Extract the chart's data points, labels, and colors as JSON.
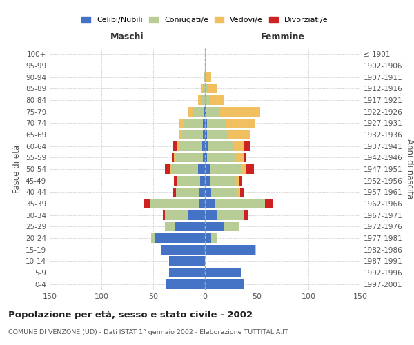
{
  "age_groups": [
    "0-4",
    "5-9",
    "10-14",
    "15-19",
    "20-24",
    "25-29",
    "30-34",
    "35-39",
    "40-44",
    "45-49",
    "50-54",
    "55-59",
    "60-64",
    "65-69",
    "70-74",
    "75-79",
    "80-84",
    "85-89",
    "90-94",
    "95-99",
    "100+"
  ],
  "birth_years": [
    "1997-2001",
    "1992-1996",
    "1987-1991",
    "1982-1986",
    "1977-1981",
    "1972-1976",
    "1967-1971",
    "1962-1966",
    "1957-1961",
    "1952-1956",
    "1947-1951",
    "1942-1946",
    "1937-1941",
    "1932-1936",
    "1927-1931",
    "1922-1926",
    "1917-1921",
    "1912-1916",
    "1907-1911",
    "1902-1906",
    "≤ 1901"
  ],
  "males": {
    "celibi": [
      38,
      35,
      35,
      42,
      48,
      29,
      17,
      6,
      6,
      5,
      7,
      2,
      3,
      2,
      2,
      1,
      0,
      0,
      0,
      0,
      0
    ],
    "coniugati": [
      0,
      0,
      0,
      0,
      3,
      10,
      22,
      47,
      22,
      22,
      26,
      26,
      22,
      20,
      18,
      11,
      4,
      2,
      1,
      0,
      0
    ],
    "vedovi": [
      0,
      0,
      0,
      0,
      1,
      0,
      0,
      0,
      0,
      0,
      1,
      2,
      2,
      3,
      5,
      4,
      3,
      2,
      0,
      0,
      0
    ],
    "divorziati": [
      0,
      0,
      0,
      0,
      0,
      0,
      2,
      6,
      3,
      3,
      5,
      2,
      4,
      0,
      0,
      0,
      0,
      0,
      0,
      0,
      0
    ]
  },
  "females": {
    "nubili": [
      38,
      35,
      0,
      48,
      6,
      18,
      12,
      10,
      6,
      5,
      5,
      2,
      3,
      2,
      2,
      1,
      0,
      0,
      0,
      0,
      0
    ],
    "coniugate": [
      0,
      0,
      0,
      1,
      5,
      15,
      26,
      48,
      25,
      25,
      30,
      28,
      24,
      20,
      18,
      12,
      5,
      3,
      1,
      0,
      0
    ],
    "vedove": [
      0,
      0,
      0,
      0,
      0,
      0,
      0,
      0,
      3,
      3,
      5,
      7,
      11,
      22,
      28,
      40,
      13,
      9,
      5,
      1,
      0
    ],
    "divorziate": [
      0,
      0,
      0,
      0,
      0,
      0,
      3,
      8,
      3,
      3,
      7,
      3,
      5,
      0,
      0,
      0,
      0,
      0,
      0,
      0,
      0
    ]
  },
  "colors": {
    "celibi": "#4472c4",
    "coniugati": "#b8cc96",
    "vedovi": "#f0c060",
    "divorziati": "#cc2222"
  },
  "title": "Popolazione per età, sesso e stato civile - 2002",
  "subtitle": "COMUNE DI VENZONE (UD) - Dati ISTAT 1° gennaio 2002 - Elaborazione TUTTITALIA.IT",
  "xlabel_left": "Maschi",
  "xlabel_right": "Femmine",
  "ylabel_left": "Fasce di età",
  "ylabel_right": "Anni di nascita",
  "xlim": 150,
  "legend_labels": [
    "Celibi/Nubili",
    "Coniugati/e",
    "Vedovi/e",
    "Divorziati/e"
  ]
}
